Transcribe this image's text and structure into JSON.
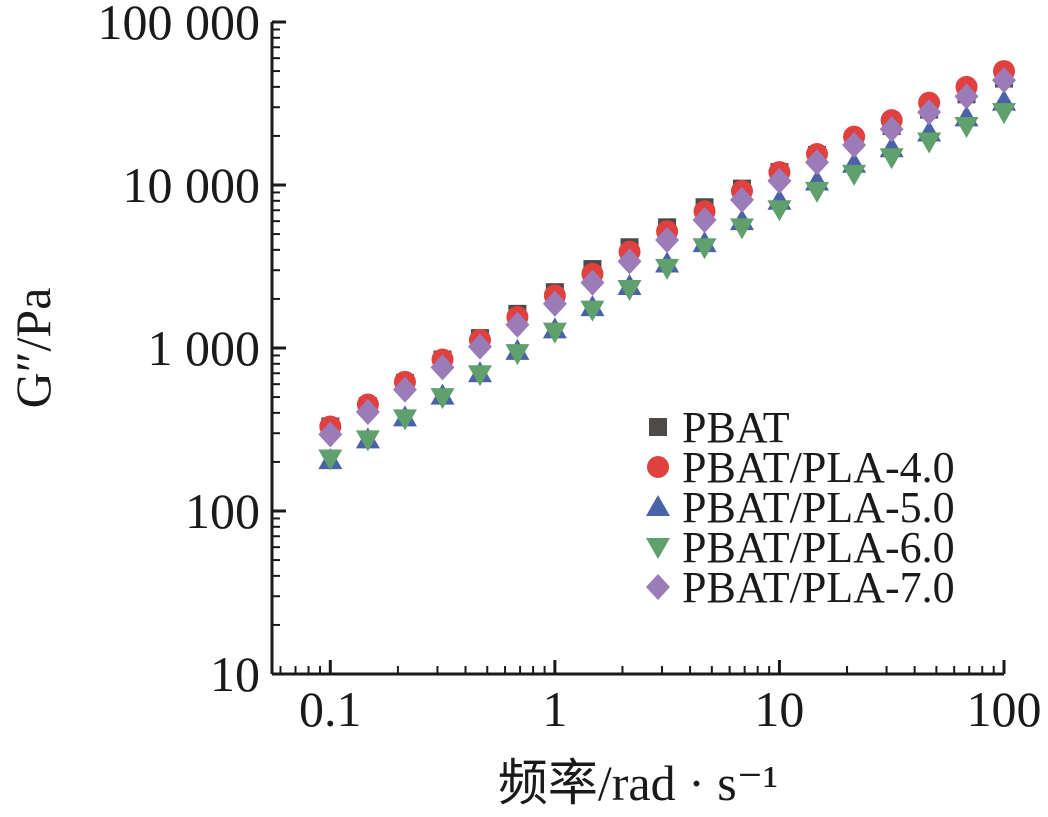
{
  "chart_data": {
    "type": "scatter",
    "xscale": "log",
    "yscale": "log",
    "xlim": [
      0.055,
      100
    ],
    "ylim": [
      10,
      100000
    ],
    "xlabel": "频率/rad · s⁻¹",
    "ylabel": "G″/Pa",
    "xticks": [
      {
        "value": 0.1,
        "label": "0.1"
      },
      {
        "value": 1,
        "label": "1"
      },
      {
        "value": 10,
        "label": "10"
      },
      {
        "value": 100,
        "label": "100"
      }
    ],
    "yticks": [
      {
        "value": 10,
        "label": "10"
      },
      {
        "value": 100,
        "label": "100"
      },
      {
        "value": 1000,
        "label": "1 000"
      },
      {
        "value": 10000,
        "label": "10 000"
      },
      {
        "value": 100000,
        "label": "100 000"
      }
    ],
    "legend_position": "bottom-right",
    "x": [
      0.1,
      0.147,
      0.215,
      0.316,
      0.464,
      0.681,
      1.0,
      1.47,
      2.15,
      3.16,
      4.64,
      6.81,
      10.0,
      14.7,
      21.5,
      31.6,
      46.4,
      68.1,
      100.0
    ],
    "series": [
      {
        "name": "PBAT",
        "marker": "square",
        "color": "#4d4a47",
        "values": [
          330,
          440,
          610,
          850,
          1150,
          1620,
          2200,
          3050,
          4150,
          5500,
          7300,
          9500,
          12000,
          15300,
          19000,
          23000,
          29000,
          36000,
          45000
        ]
      },
      {
        "name": "PBAT/PLA-4.0",
        "marker": "circle",
        "color": "#e0413f",
        "values": [
          330,
          450,
          620,
          850,
          1120,
          1550,
          2100,
          2850,
          3900,
          5200,
          6900,
          9200,
          12000,
          15500,
          19800,
          25000,
          32000,
          40000,
          50000
        ]
      },
      {
        "name": "PBAT/PLA-5.0",
        "marker": "triangle-up",
        "color": "#4a62a8",
        "values": [
          205,
          275,
          375,
          510,
          700,
          960,
          1300,
          1780,
          2400,
          3300,
          4400,
          6000,
          8000,
          10500,
          13500,
          16800,
          21000,
          26000,
          32500
        ]
      },
      {
        "name": "PBAT/PLA-6.0",
        "marker": "triangle-down",
        "color": "#5fa06c",
        "values": [
          210,
          275,
          370,
          500,
          690,
          930,
          1260,
          1720,
          2300,
          3100,
          4150,
          5500,
          7100,
          9200,
          11700,
          14800,
          18500,
          23000,
          28000
        ]
      },
      {
        "name": "PBAT/PLA-7.0",
        "marker": "diamond",
        "color": "#9b7bb8",
        "values": [
          295,
          405,
          555,
          760,
          1020,
          1390,
          1870,
          2520,
          3400,
          4600,
          6100,
          8100,
          10600,
          13800,
          17600,
          22000,
          28000,
          35000,
          44000
        ]
      }
    ]
  }
}
